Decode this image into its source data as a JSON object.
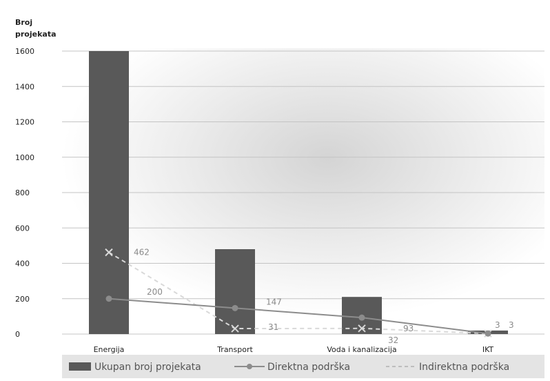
{
  "chart_data": {
    "type": "bar",
    "ylabel_line1": "Broj",
    "ylabel_line2": "projekata",
    "xlabel": "",
    "categories": [
      "Energija",
      "Transport",
      "Voda i kanalizacija",
      "IKT"
    ],
    "ylim": [
      0,
      1600
    ],
    "yticks": [
      0,
      200,
      400,
      600,
      800,
      1000,
      1200,
      1400,
      1600
    ],
    "grid": true,
    "legend_position": "bottom",
    "series": [
      {
        "name": "Ukupan broj projekata",
        "kind": "bar",
        "values": [
          1600,
          480,
          210,
          20
        ],
        "color": "#595959"
      },
      {
        "name": "Direktna podrška",
        "kind": "line",
        "values": [
          200,
          147,
          93,
          3
        ],
        "labels": [
          "200",
          "147",
          "93",
          "3"
        ],
        "color": "#8c8c8c"
      },
      {
        "name": "Indirektna podrška",
        "kind": "line-dashed",
        "values": [
          462,
          31,
          32,
          3
        ],
        "labels": [
          "462",
          "31",
          "32",
          "3"
        ],
        "color": "#b0b0b0"
      }
    ]
  }
}
